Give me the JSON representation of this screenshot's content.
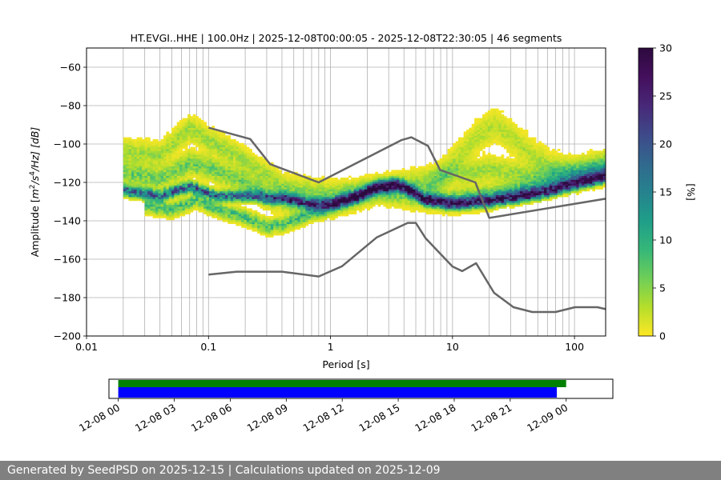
{
  "chart_data": [
    {
      "type": "heatmap",
      "title": "HT.EVGI..HHE | 100.0Hz | 2025-12-08T00:00:05 - 2025-12-08T22:30:05 | 46 segments",
      "xlabel": "Period [s]",
      "ylabel_parts": {
        "pre": "Amplitude [",
        "m": "m",
        "e2": "2",
        "slash": "/s",
        "e4": "4",
        "tail": "/Hz] [dB]"
      },
      "xscale": "log",
      "xlim": [
        0.01,
        180
      ],
      "ylim": [
        -200,
        -50
      ],
      "xticks": [
        {
          "value": 0.01,
          "label": "0.01"
        },
        {
          "value": 0.1,
          "label": "0.1"
        },
        {
          "value": 1,
          "label": "1"
        },
        {
          "value": 10,
          "label": "10"
        },
        {
          "value": 100,
          "label": "100"
        }
      ],
      "yticks": [
        {
          "value": -60,
          "label": "−60"
        },
        {
          "value": -80,
          "label": "−80"
        },
        {
          "value": -100,
          "label": "−100"
        },
        {
          "value": -120,
          "label": "−120"
        },
        {
          "value": -140,
          "label": "−140"
        },
        {
          "value": -160,
          "label": "−160"
        },
        {
          "value": -180,
          "label": "−180"
        },
        {
          "value": -200,
          "label": "−200"
        }
      ],
      "grid": true,
      "period_range": [
        0.02,
        180
      ],
      "psd_bands": [
        {
          "name": "dominant-band",
          "weight": 18,
          "thickness": 4,
          "points": [
            [
              0.02,
              -124
            ],
            [
              0.04,
              -127
            ],
            [
              0.07,
              -122
            ],
            [
              0.12,
              -127
            ],
            [
              0.2,
              -127
            ],
            [
              0.4,
              -128
            ],
            [
              0.7,
              -131
            ],
            [
              1,
              -131
            ],
            [
              1.5,
              -128
            ],
            [
              2.5,
              -122
            ],
            [
              3.5,
              -121
            ],
            [
              4.5,
              -124
            ],
            [
              6,
              -129
            ],
            [
              10,
              -131
            ],
            [
              20,
              -130
            ],
            [
              50,
              -126
            ],
            [
              100,
              -121
            ],
            [
              180,
              -117
            ]
          ]
        },
        {
          "name": "lower-secondary-band",
          "weight": 8,
          "thickness": 5,
          "points": [
            [
              0.03,
              -132
            ],
            [
              0.05,
              -134
            ],
            [
              0.08,
              -129
            ],
            [
              0.12,
              -134
            ],
            [
              0.2,
              -138
            ],
            [
              0.3,
              -143
            ],
            [
              0.45,
              -141
            ],
            [
              0.7,
              -136
            ],
            [
              1,
              -133
            ],
            [
              1.5,
              -129
            ],
            [
              2.5,
              -122
            ],
            [
              3.5,
              -121
            ],
            [
              4.5,
              -124
            ],
            [
              6,
              -129
            ],
            [
              10,
              -130
            ],
            [
              20,
              -128
            ],
            [
              50,
              -124
            ],
            [
              100,
              -119
            ],
            [
              180,
              -115
            ]
          ]
        },
        {
          "name": "mid-variable-band",
          "weight": 6,
          "thickness": 8,
          "points": [
            [
              0.02,
              -115
            ],
            [
              0.04,
              -118
            ],
            [
              0.07,
              -110
            ],
            [
              0.1,
              -112
            ],
            [
              0.2,
              -120
            ],
            [
              0.3,
              -127
            ],
            [
              0.5,
              -130
            ],
            [
              0.8,
              -132
            ],
            [
              1,
              -131
            ],
            [
              1.5,
              -128
            ],
            [
              2.5,
              -124
            ],
            [
              5,
              -127
            ],
            [
              10,
              -129
            ],
            [
              20,
              -127
            ],
            [
              50,
              -122
            ],
            [
              100,
              -118
            ],
            [
              180,
              -114
            ]
          ]
        },
        {
          "name": "upper-noisy-band",
          "weight": 4,
          "thickness": 8,
          "points": [
            [
              0.02,
              -104
            ],
            [
              0.04,
              -106
            ],
            [
              0.07,
              -92
            ],
            [
              0.1,
              -98
            ],
            [
              0.15,
              -104
            ],
            [
              0.25,
              -113
            ],
            [
              0.4,
              -122
            ],
            [
              0.6,
              -124
            ],
            [
              1,
              -126
            ],
            [
              2,
              -124
            ],
            [
              5,
              -120
            ],
            [
              8,
              -117
            ],
            [
              12,
              -115
            ],
            [
              20,
              -113
            ],
            [
              40,
              -116
            ],
            [
              100,
              -114
            ],
            [
              180,
              -110
            ]
          ]
        },
        {
          "name": "hump-band",
          "weight": 3,
          "thickness": 10,
          "points": [
            [
              6,
              -126
            ],
            [
              10,
              -110
            ],
            [
              15,
              -98
            ],
            [
              22,
              -90
            ],
            [
              30,
              -96
            ],
            [
              45,
              -106
            ],
            [
              70,
              -113
            ],
            [
              100,
              -115
            ],
            [
              180,
              -112
            ]
          ]
        }
      ],
      "nlnm": {
        "name": "Peterson NLNM",
        "points": [
          [
            0.1,
            -168
          ],
          [
            0.17,
            -166.5
          ],
          [
            0.4,
            -166.5
          ],
          [
            0.8,
            -169
          ],
          [
            1.24,
            -163.7
          ],
          [
            2.4,
            -148.6
          ],
          [
            4.3,
            -141.1
          ],
          [
            5,
            -141.1
          ],
          [
            6,
            -149
          ],
          [
            10,
            -163.8
          ],
          [
            12,
            -166.2
          ],
          [
            15.6,
            -162.1
          ],
          [
            21.9,
            -177.5
          ],
          [
            31.6,
            -185
          ],
          [
            45,
            -187.5
          ],
          [
            70,
            -187.5
          ],
          [
            101,
            -185
          ],
          [
            154,
            -185
          ],
          [
            180,
            -186
          ]
        ]
      },
      "nhnm": {
        "name": "Peterson NHNM",
        "points": [
          [
            0.1,
            -91.5
          ],
          [
            0.22,
            -97.4
          ],
          [
            0.32,
            -110.5
          ],
          [
            0.8,
            -120
          ],
          [
            3.8,
            -98
          ],
          [
            4.6,
            -96.5
          ],
          [
            6.3,
            -101
          ],
          [
            7.9,
            -113.5
          ],
          [
            15.4,
            -120
          ],
          [
            20,
            -138.5
          ],
          [
            180,
            -128.5
          ]
        ]
      },
      "colorbar": {
        "label": "[%]",
        "min": 0,
        "max": 30,
        "colormap": "viridis_r",
        "ticks": [
          {
            "value": 0,
            "label": "0"
          },
          {
            "value": 5,
            "label": "5"
          },
          {
            "value": 10,
            "label": "10"
          },
          {
            "value": 15,
            "label": "15"
          },
          {
            "value": 20,
            "label": "20"
          },
          {
            "value": 25,
            "label": "25"
          },
          {
            "value": 30,
            "label": "30"
          }
        ]
      }
    },
    {
      "type": "timeline",
      "time_range_hours": [
        -0.5,
        26.5
      ],
      "xticks": [
        {
          "value": 0,
          "label": "12-08 00"
        },
        {
          "value": 3,
          "label": "12-08 03"
        },
        {
          "value": 6,
          "label": "12-08 06"
        },
        {
          "value": 9,
          "label": "12-08 09"
        },
        {
          "value": 12,
          "label": "12-08 12"
        },
        {
          "value": 15,
          "label": "12-08 15"
        },
        {
          "value": 18,
          "label": "12-08 18"
        },
        {
          "value": 21,
          "label": "12-08 21"
        },
        {
          "value": 24,
          "label": "12-09 00"
        }
      ],
      "bars": [
        {
          "name": "data-available",
          "color": "#008000",
          "start_hour": 0.0,
          "end_hour": 24.0
        },
        {
          "name": "psd-segments",
          "color": "#0000ff",
          "start_hour": 0.0,
          "end_hour": 23.5
        }
      ]
    }
  ],
  "footer": {
    "text": "Generated by SeedPSD on 2025-12-15 | Calculations updated on 2025-12-09"
  }
}
